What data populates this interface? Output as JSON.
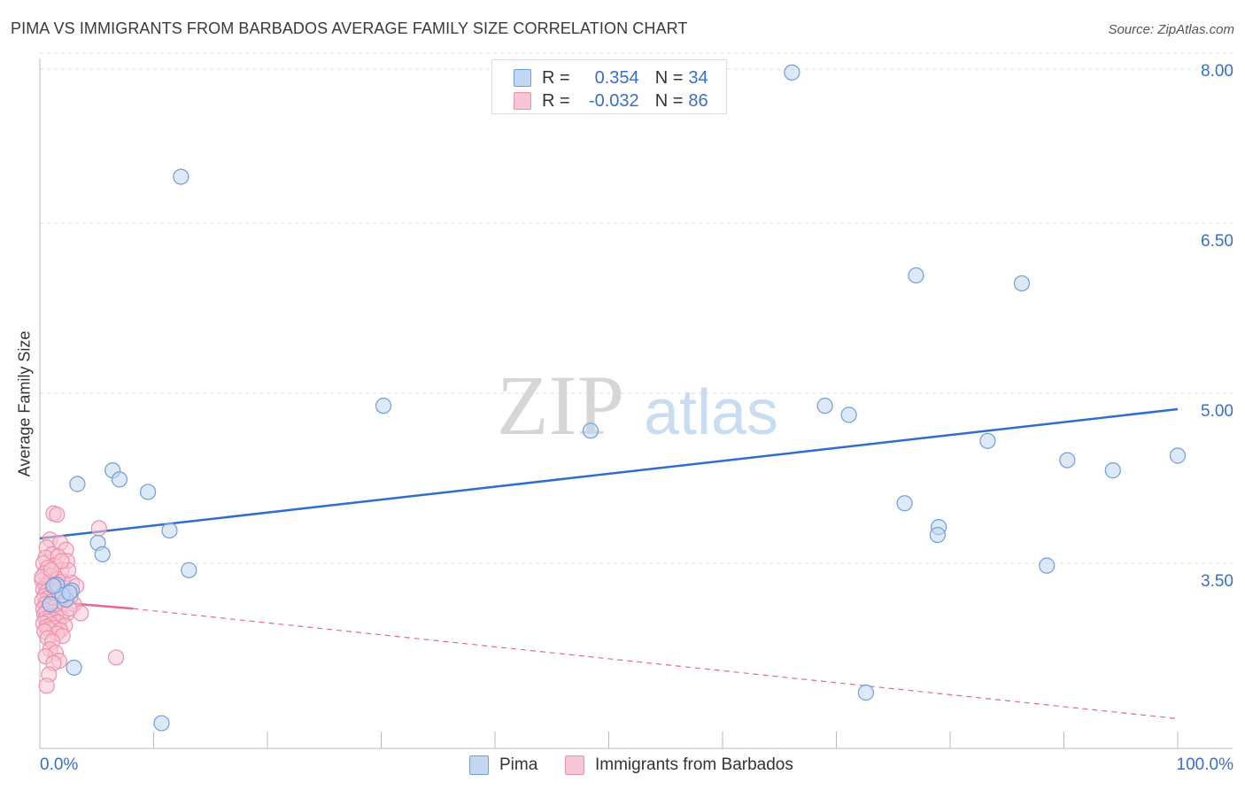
{
  "title": "PIMA VS IMMIGRANTS FROM BARBADOS AVERAGE FAMILY SIZE CORRELATION CHART",
  "source": "Source: ZipAtlas.com",
  "watermark": {
    "zip": "ZIP",
    "atlas": "atlas"
  },
  "legend": {
    "r_label": "R =",
    "n_label": "N =",
    "rows": [
      {
        "r": "0.354",
        "n": "34"
      },
      {
        "r": "-0.032",
        "n": "86"
      }
    ]
  },
  "chart_data": {
    "type": "scatter",
    "title": "PIMA VS IMMIGRANTS FROM BARBADOS AVERAGE FAMILY SIZE CORRELATION CHART",
    "xlabel": "",
    "ylabel": "Average Family Size",
    "xlim": [
      0,
      100
    ],
    "ylim": [
      2.2,
      8.2
    ],
    "x_tick_labels": [
      "0.0%",
      "100.0%"
    ],
    "y_ticks": [
      3.5,
      5.0,
      6.5,
      8.0
    ],
    "y_tick_labels": [
      "3.50",
      "5.00",
      "6.50",
      "8.00"
    ],
    "grid": true,
    "series": [
      {
        "name": "Pima",
        "color": "#6f9ed9",
        "fill": "#c3d7f2",
        "line_color": "#2f6fcb",
        "trend": {
          "x0": 0,
          "y0": 3.86,
          "x1": 100,
          "y1": 5.0,
          "dashed_to": 100
        },
        "points": [
          [
            66.1,
            7.97
          ],
          [
            12.4,
            7.05
          ],
          [
            77.0,
            6.18
          ],
          [
            86.3,
            6.11
          ],
          [
            30.2,
            5.03
          ],
          [
            69.0,
            5.03
          ],
          [
            71.1,
            4.95
          ],
          [
            48.4,
            4.81
          ],
          [
            83.3,
            4.72
          ],
          [
            90.3,
            4.55
          ],
          [
            100.0,
            4.59
          ],
          [
            94.3,
            4.46
          ],
          [
            6.4,
            4.46
          ],
          [
            3.3,
            4.34
          ],
          [
            7.0,
            4.38
          ],
          [
            9.5,
            4.27
          ],
          [
            76.0,
            4.17
          ],
          [
            79.0,
            3.96
          ],
          [
            78.9,
            3.89
          ],
          [
            11.4,
            3.93
          ],
          [
            5.1,
            3.82
          ],
          [
            5.5,
            3.72
          ],
          [
            88.5,
            3.62
          ],
          [
            13.1,
            3.58
          ],
          [
            2.8,
            3.4
          ],
          [
            2.3,
            3.32
          ],
          [
            3.0,
            2.72
          ],
          [
            72.6,
            2.5
          ],
          [
            10.7,
            2.23
          ],
          [
            1.5,
            3.45
          ],
          [
            2.0,
            3.36
          ],
          [
            0.9,
            3.28
          ],
          [
            1.2,
            3.44
          ],
          [
            2.6,
            3.38
          ]
        ]
      },
      {
        "name": "Immigrants from Barbados",
        "color": "#ee8fab",
        "fill": "#f7c6d5",
        "line_color": "#e2698f",
        "trend": {
          "x0": 0,
          "y0": 3.31,
          "x1": 8.2,
          "y1": 3.24,
          "dashed_to": 100,
          "y_end": 2.27
        },
        "points": [
          [
            1.2,
            4.08
          ],
          [
            1.5,
            4.07
          ],
          [
            5.2,
            3.95
          ],
          [
            0.9,
            3.85
          ],
          [
            1.8,
            3.82
          ],
          [
            0.6,
            3.78
          ],
          [
            2.3,
            3.76
          ],
          [
            1.1,
            3.72
          ],
          [
            0.5,
            3.69
          ],
          [
            1.6,
            3.7
          ],
          [
            2.4,
            3.66
          ],
          [
            0.3,
            3.64
          ],
          [
            1.3,
            3.62
          ],
          [
            0.7,
            3.6
          ],
          [
            1.9,
            3.58
          ],
          [
            0.4,
            3.55
          ],
          [
            1.0,
            3.53
          ],
          [
            1.5,
            3.5
          ],
          [
            0.2,
            3.49
          ],
          [
            2.0,
            3.48
          ],
          [
            0.8,
            3.47
          ],
          [
            1.2,
            3.45
          ],
          [
            0.5,
            3.44
          ],
          [
            1.7,
            3.43
          ],
          [
            2.2,
            3.42
          ],
          [
            0.3,
            3.41
          ],
          [
            1.1,
            3.4
          ],
          [
            0.6,
            3.39
          ],
          [
            1.4,
            3.38
          ],
          [
            0.9,
            3.37
          ],
          [
            1.8,
            3.36
          ],
          [
            0.4,
            3.35
          ],
          [
            1.2,
            3.34
          ],
          [
            0.7,
            3.33
          ],
          [
            1.6,
            3.32
          ],
          [
            0.2,
            3.31
          ],
          [
            1.0,
            3.3
          ],
          [
            1.5,
            3.29
          ],
          [
            0.5,
            3.28
          ],
          [
            2.1,
            3.27
          ],
          [
            0.8,
            3.26
          ],
          [
            1.3,
            3.25
          ],
          [
            0.3,
            3.24
          ],
          [
            1.7,
            3.23
          ],
          [
            0.6,
            3.22
          ],
          [
            1.1,
            3.21
          ],
          [
            2.4,
            3.2
          ],
          [
            0.4,
            3.19
          ],
          [
            1.4,
            3.18
          ],
          [
            0.9,
            3.17
          ],
          [
            1.9,
            3.16
          ],
          [
            0.5,
            3.15
          ],
          [
            1.2,
            3.14
          ],
          [
            0.7,
            3.13
          ],
          [
            1.6,
            3.12
          ],
          [
            0.3,
            3.11
          ],
          [
            1.0,
            3.1
          ],
          [
            2.2,
            3.09
          ],
          [
            0.6,
            3.08
          ],
          [
            1.3,
            3.07
          ],
          [
            0.8,
            3.06
          ],
          [
            1.8,
            3.05
          ],
          [
            0.4,
            3.04
          ],
          [
            1.5,
            3.02
          ],
          [
            2.0,
            3.0
          ],
          [
            0.7,
            2.98
          ],
          [
            1.1,
            2.95
          ],
          [
            3.0,
            3.28
          ],
          [
            2.8,
            3.47
          ],
          [
            2.7,
            3.35
          ],
          [
            3.6,
            3.2
          ],
          [
            0.9,
            2.88
          ],
          [
            1.4,
            2.85
          ],
          [
            0.5,
            2.82
          ],
          [
            1.7,
            2.78
          ],
          [
            1.2,
            2.76
          ],
          [
            6.7,
            2.81
          ],
          [
            0.8,
            2.66
          ],
          [
            0.6,
            2.56
          ],
          [
            2.5,
            3.58
          ],
          [
            3.2,
            3.44
          ],
          [
            1.9,
            3.66
          ],
          [
            2.6,
            3.24
          ],
          [
            0.2,
            3.52
          ],
          [
            1.0,
            3.58
          ],
          [
            1.6,
            3.4
          ]
        ]
      }
    ]
  }
}
